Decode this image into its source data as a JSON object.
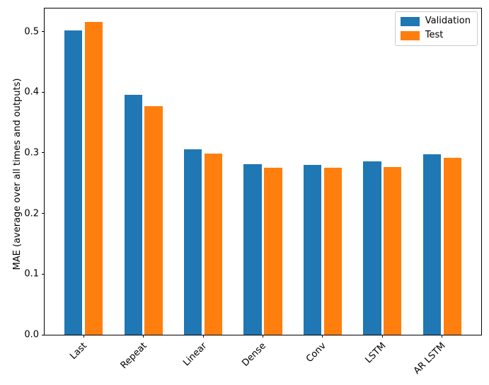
{
  "chart_data": {
    "type": "bar",
    "title": "",
    "xlabel": "",
    "ylabel": "MAE (average over all times and outputs)",
    "categories": [
      "Last",
      "Repeat",
      "Linear",
      "Dense",
      "Conv",
      "LSTM",
      "AR LSTM"
    ],
    "series": [
      {
        "name": "Validation",
        "color": "#1f77b4",
        "values": [
          0.502,
          0.396,
          0.306,
          0.281,
          0.28,
          0.286,
          0.298
        ]
      },
      {
        "name": "Test",
        "color": "#ff7f0e",
        "values": [
          0.516,
          0.377,
          0.299,
          0.276,
          0.275,
          0.277,
          0.292
        ]
      }
    ],
    "ylim": [
      0,
      0.538
    ],
    "yticks": [
      0.0,
      0.1,
      0.2,
      0.3,
      0.4,
      0.5
    ],
    "ytick_labels": [
      "0.0",
      "0.1",
      "0.2",
      "0.3",
      "0.4",
      "0.5"
    ],
    "xtick_rotation": 45,
    "bar_width_frac": 0.3,
    "bar_offset_frac": 0.17,
    "grid": false,
    "legend_position": "upper right",
    "background_color": "#ffffff",
    "spine_color": "#000000"
  }
}
